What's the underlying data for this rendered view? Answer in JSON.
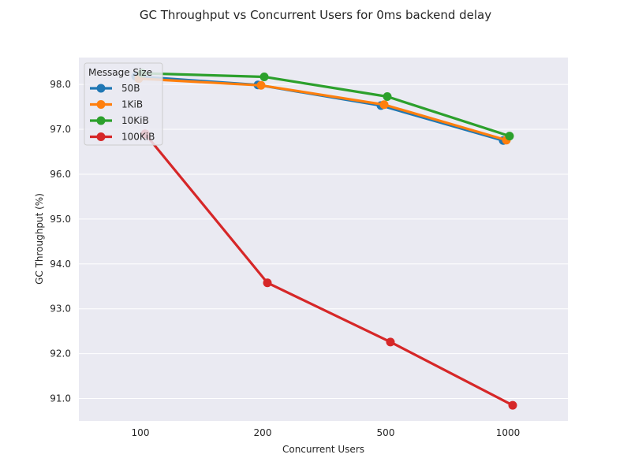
{
  "chart_data": {
    "type": "line",
    "title": "GC Throughput vs Concurrent Users for 0ms backend delay",
    "xlabel": "Concurrent Users",
    "ylabel": "GC Throughput (%)",
    "categories": [
      "100",
      "200",
      "500",
      "1000"
    ],
    "ylim": [
      90.5,
      98.6
    ],
    "yticks": [
      91.0,
      92.0,
      93.0,
      94.0,
      95.0,
      96.0,
      97.0,
      98.0
    ],
    "grid": true,
    "legend": {
      "title": "Message Size",
      "placement": "top-left"
    },
    "series": [
      {
        "name": "50B",
        "color": "#1f77b4",
        "values": [
          98.18,
          97.99,
          97.53,
          96.75
        ]
      },
      {
        "name": "1KiB",
        "color": "#ff7f0e",
        "values": [
          98.13,
          97.98,
          97.55,
          96.76
        ]
      },
      {
        "name": "10KiB",
        "color": "#2ca02c",
        "values": [
          98.25,
          98.17,
          97.73,
          96.85
        ]
      },
      {
        "name": "100KiB",
        "color": "#d62728",
        "values": [
          96.9,
          93.58,
          92.26,
          90.85
        ]
      }
    ]
  }
}
